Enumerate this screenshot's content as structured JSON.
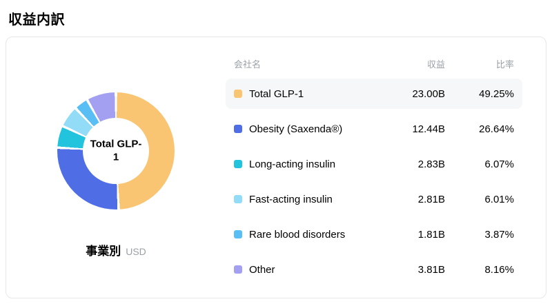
{
  "page_title": "収益内訳",
  "chart": {
    "center_label": "Total GLP-1",
    "footer_label": "事業別",
    "footer_unit": "USD"
  },
  "table": {
    "headers": {
      "name": "会社名",
      "revenue": "収益",
      "ratio": "比率"
    },
    "rows": [
      {
        "name": "Total GLP-1",
        "revenue": "23.00B",
        "ratio": "49.25%",
        "color": "#F9C573",
        "highlight": true
      },
      {
        "name": "Obesity (Saxenda®)",
        "revenue": "12.44B",
        "ratio": "26.64%",
        "color": "#4F6EE6",
        "highlight": false
      },
      {
        "name": "Long-acting insulin",
        "revenue": "2.83B",
        "ratio": "6.07%",
        "color": "#22C3DC",
        "highlight": false
      },
      {
        "name": "Fast-acting insulin",
        "revenue": "2.81B",
        "ratio": "6.01%",
        "color": "#93DCF8",
        "highlight": false
      },
      {
        "name": "Rare blood disorders",
        "revenue": "1.81B",
        "ratio": "3.87%",
        "color": "#58BEF3",
        "highlight": false
      },
      {
        "name": "Other",
        "revenue": "3.81B",
        "ratio": "8.16%",
        "color": "#A3A0F2",
        "highlight": false
      }
    ]
  },
  "chart_data": {
    "type": "pie",
    "title": "収益内訳",
    "subtitle": "事業別",
    "unit": "USD",
    "donut": true,
    "center_label": "Total GLP-1",
    "start_angle": "top",
    "direction": "clockwise",
    "legend_position": "right-table",
    "labels": [
      "Total GLP-1",
      "Obesity (Saxenda®)",
      "Long-acting insulin",
      "Fast-acting insulin",
      "Rare blood disorders",
      "Other"
    ],
    "values": [
      49.25,
      26.64,
      6.07,
      6.01,
      3.87,
      8.16
    ],
    "revenues": [
      "23.00B",
      "12.44B",
      "2.83B",
      "2.81B",
      "1.81B",
      "3.81B"
    ],
    "colors": [
      "#F9C573",
      "#4F6EE6",
      "#22C3DC",
      "#93DCF8",
      "#58BEF3",
      "#A3A0F2"
    ]
  }
}
